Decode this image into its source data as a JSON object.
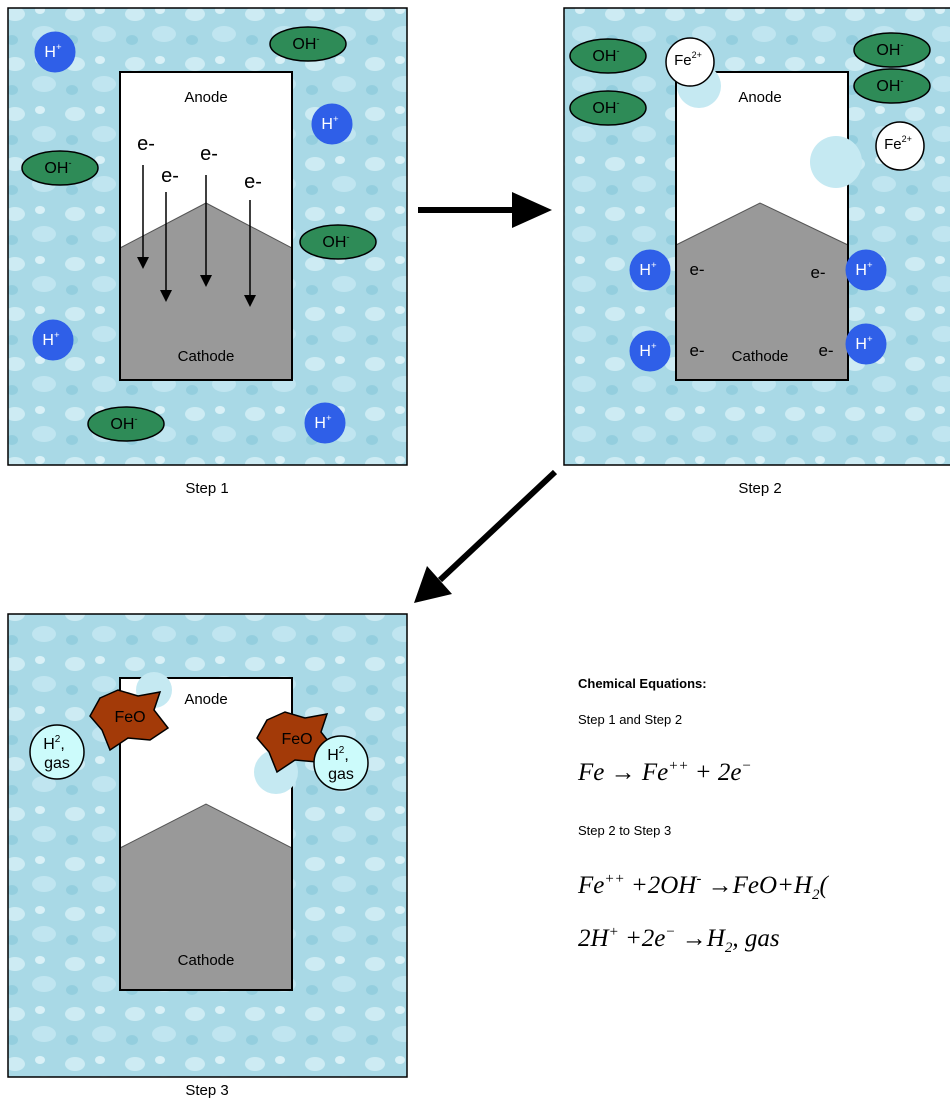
{
  "panels": [
    {
      "caption": "Step 1",
      "anode": "Anode",
      "cathode": "Cathode",
      "ions": [
        {
          "base": "H",
          "sup": "+"
        },
        {
          "base": "OH",
          "sup": "-"
        },
        {
          "base": "H",
          "sup": "+"
        },
        {
          "base": "OH",
          "sup": "-"
        },
        {
          "base": "OH",
          "sup": "-"
        },
        {
          "base": "H",
          "sup": "+"
        },
        {
          "base": "OH",
          "sup": "-"
        },
        {
          "base": "H",
          "sup": "+"
        }
      ],
      "electrons": [
        "e-",
        "e-",
        "e-",
        "e-"
      ]
    },
    {
      "caption": "Step 2",
      "anode": "Anode",
      "cathode": "Cathode",
      "ions": [
        {
          "base": "OH",
          "sup": "-"
        },
        {
          "base": "Fe",
          "sup": "2+"
        },
        {
          "base": "OH",
          "sup": "-"
        },
        {
          "base": "OH",
          "sup": "-"
        },
        {
          "base": "OH",
          "sup": "-"
        },
        {
          "base": "Fe",
          "sup": "2+"
        },
        {
          "base": "H",
          "sup": "+"
        },
        {
          "base": "H",
          "sup": "+"
        },
        {
          "base": "H",
          "sup": "+"
        },
        {
          "base": "H",
          "sup": "+"
        }
      ],
      "electrons": [
        "e-",
        "e-",
        "e-",
        "e-"
      ]
    },
    {
      "caption": "Step 3",
      "anode": "Anode",
      "cathode": "Cathode",
      "deposits": [
        "FeO",
        "FeO"
      ],
      "gas": [
        {
          "base": "H",
          "sup": "2",
          "suffix": ",",
          "line2": "gas"
        },
        {
          "base": "H",
          "sup": "2",
          "suffix": ",",
          "line2": "gas"
        }
      ]
    }
  ],
  "equations": {
    "title": "Chemical Equations:",
    "sections": [
      {
        "label": "Step 1 and Step 2",
        "lines": [
          [
            {
              "text": "Fe → Fe"
            },
            {
              "sup": "++"
            },
            {
              "text": " + 2e"
            },
            {
              "sup": "−"
            }
          ]
        ]
      },
      {
        "label": "Step 2 to Step 3",
        "lines": [
          [
            {
              "text": "Fe"
            },
            {
              "sup": "++"
            },
            {
              "text": " +2OH"
            },
            {
              "sup": "-"
            },
            {
              "text": " →FeO+H"
            },
            {
              "sub": "2"
            },
            {
              "text": "("
            }
          ],
          [
            {
              "text": "2H"
            },
            {
              "sup": "+"
            },
            {
              "text": " +2e"
            },
            {
              "sup": "−"
            },
            {
              "text": " →H"
            },
            {
              "sub": "2"
            },
            {
              "text": ", gas"
            }
          ]
        ]
      }
    ]
  }
}
